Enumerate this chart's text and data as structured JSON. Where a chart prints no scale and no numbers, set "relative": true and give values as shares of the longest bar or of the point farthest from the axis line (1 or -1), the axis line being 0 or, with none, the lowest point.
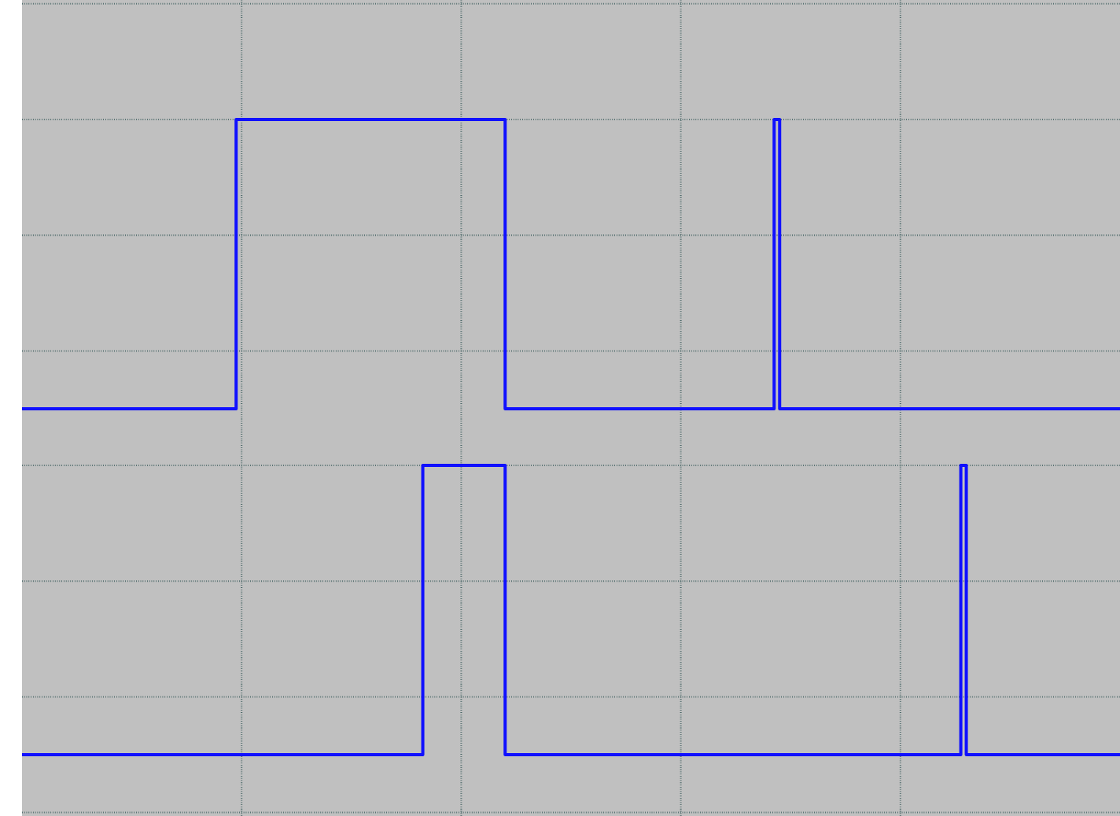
{
  "chart_data": [
    {
      "type": "step",
      "relative": true,
      "color": "#1010ff",
      "grid": true,
      "categories": [
        null,
        null,
        null,
        null,
        null,
        null,
        null,
        null,
        null,
        null,
        null,
        null,
        null,
        null,
        null,
        null,
        null,
        null,
        null,
        null,
        null,
        null,
        null,
        null,
        null,
        null,
        null,
        null,
        null,
        null,
        null,
        null,
        null,
        null,
        null,
        null,
        null,
        null,
        null,
        null,
        null,
        null,
        null,
        null,
        null,
        null,
        null,
        null,
        null,
        null,
        null,
        null,
        null,
        null,
        null,
        null,
        null,
        null,
        null,
        null,
        null,
        null,
        null,
        null,
        null,
        null,
        null,
        null,
        null,
        null,
        null,
        null,
        null,
        null,
        null,
        null,
        null,
        null,
        null,
        null,
        null,
        null,
        null,
        null,
        null,
        null,
        null,
        null,
        null,
        null,
        null,
        null,
        null,
        null,
        null,
        null,
        null,
        null,
        null,
        null,
        null,
        null,
        null,
        null,
        null,
        null,
        null,
        null,
        null,
        null,
        null,
        null,
        null,
        null,
        null,
        null,
        null,
        null,
        null,
        null,
        null,
        null,
        null,
        null,
        null,
        null,
        null,
        null,
        null,
        null,
        null,
        null,
        null,
        null,
        null,
        null,
        null,
        null,
        null,
        null,
        null,
        null,
        null,
        null,
        null,
        null,
        null,
        null,
        null,
        null,
        null,
        null,
        null,
        null,
        null,
        null,
        null,
        null,
        null,
        null,
        null,
        null,
        null,
        null,
        null,
        null,
        null,
        null,
        null,
        null,
        null,
        null,
        null,
        null,
        null,
        null,
        null,
        null,
        null,
        null,
        null,
        null,
        null,
        null,
        null,
        null,
        null,
        null,
        null,
        null,
        null,
        null,
        null,
        null,
        null,
        null,
        null,
        null,
        null,
        null,
        null
      ],
      "values": [
        0,
        0,
        0,
        0,
        0,
        0,
        0,
        0,
        0,
        0,
        0,
        0,
        0,
        0,
        0,
        0,
        0,
        0,
        0,
        0,
        0,
        0,
        0,
        0,
        0,
        0,
        0,
        0,
        0,
        0,
        0,
        0,
        0,
        0,
        0,
        0,
        0,
        0,
        0,
        1,
        1,
        1,
        1,
        1,
        1,
        1,
        1,
        1,
        1,
        1,
        1,
        1,
        1,
        1,
        1,
        1,
        1,
        1,
        1,
        1,
        1,
        1,
        1,
        1,
        1,
        1,
        1,
        1,
        1,
        1,
        1,
        1,
        1,
        1,
        1,
        1,
        1,
        1,
        1,
        1,
        1,
        1,
        1,
        1,
        1,
        1,
        1,
        1,
        0,
        0,
        0,
        0,
        0,
        0,
        0,
        0,
        0,
        0,
        0,
        0,
        0,
        0,
        0,
        0,
        0,
        0,
        0,
        0,
        0,
        0,
        0,
        0,
        0,
        0,
        0,
        0,
        0,
        0,
        0,
        0,
        0,
        0,
        0,
        0,
        0,
        0,
        0,
        0,
        0,
        0,
        0,
        0,
        0,
        0,
        0,
        0,
        0,
        1,
        0,
        0,
        0,
        0,
        0,
        0,
        0,
        0,
        0,
        0,
        0,
        0,
        0,
        0,
        0,
        0,
        0,
        0,
        0,
        0,
        0,
        0,
        0,
        0,
        0,
        0,
        0,
        0,
        0,
        0,
        0,
        0,
        0,
        0,
        0,
        0,
        0,
        0,
        0,
        0,
        0,
        0,
        0,
        0,
        0,
        0,
        0,
        0,
        0,
        0,
        0,
        0,
        0,
        0,
        0,
        0,
        0,
        0,
        0,
        0,
        0,
        0,
        0
      ]
    },
    {
      "type": "step",
      "relative": true,
      "color": "#1010ff",
      "grid": true,
      "categories": [
        null,
        null,
        null,
        null,
        null,
        null,
        null,
        null,
        null,
        null,
        null,
        null,
        null,
        null,
        null,
        null,
        null,
        null,
        null,
        null,
        null,
        null,
        null,
        null,
        null,
        null,
        null,
        null,
        null,
        null,
        null,
        null,
        null,
        null,
        null,
        null,
        null,
        null,
        null,
        null,
        null,
        null,
        null,
        null,
        null,
        null,
        null,
        null,
        null,
        null,
        null,
        null,
        null,
        null,
        null,
        null,
        null,
        null,
        null,
        null,
        null,
        null,
        null,
        null,
        null,
        null,
        null,
        null,
        null,
        null,
        null,
        null,
        null,
        null,
        null,
        null,
        null,
        null,
        null,
        null,
        null,
        null,
        null,
        null,
        null,
        null,
        null,
        null,
        null,
        null,
        null,
        null,
        null,
        null,
        null,
        null,
        null,
        null,
        null,
        null,
        null,
        null,
        null,
        null,
        null,
        null,
        null,
        null,
        null,
        null,
        null,
        null,
        null,
        null,
        null,
        null,
        null,
        null,
        null,
        null,
        null,
        null,
        null,
        null,
        null,
        null,
        null,
        null,
        null,
        null,
        null,
        null,
        null,
        null,
        null,
        null,
        null,
        null,
        null,
        null,
        null,
        null,
        null,
        null,
        null,
        null,
        null,
        null,
        null,
        null,
        null,
        null,
        null,
        null,
        null,
        null,
        null,
        null,
        null,
        null,
        null,
        null,
        null,
        null,
        null,
        null,
        null,
        null,
        null,
        null,
        null,
        null,
        null,
        null,
        null,
        null,
        null,
        null,
        null,
        null,
        null,
        null,
        null,
        null,
        null,
        null,
        null,
        null,
        null,
        null,
        null,
        null,
        null,
        null,
        null,
        null,
        null,
        null,
        null,
        null,
        null
      ],
      "values": [
        0,
        0,
        0,
        0,
        0,
        0,
        0,
        0,
        0,
        0,
        0,
        0,
        0,
        0,
        0,
        0,
        0,
        0,
        0,
        0,
        0,
        0,
        0,
        0,
        0,
        0,
        0,
        0,
        0,
        0,
        0,
        0,
        0,
        0,
        0,
        0,
        0,
        0,
        0,
        0,
        0,
        0,
        0,
        0,
        0,
        0,
        0,
        0,
        0,
        0,
        0,
        0,
        0,
        0,
        0,
        0,
        0,
        0,
        0,
        0,
        0,
        0,
        0,
        0,
        0,
        0,
        0,
        0,
        0,
        0,
        0,
        0,
        0,
        1,
        1,
        1,
        1,
        1,
        1,
        1,
        1,
        1,
        1,
        1,
        1,
        1,
        1,
        1,
        0,
        0,
        0,
        0,
        0,
        0,
        0,
        0,
        0,
        0,
        0,
        0,
        0,
        0,
        0,
        0,
        0,
        0,
        0,
        0,
        0,
        0,
        0,
        0,
        0,
        0,
        0,
        0,
        0,
        0,
        0,
        0,
        0,
        0,
        0,
        0,
        0,
        0,
        0,
        0,
        0,
        0,
        0,
        0,
        0,
        0,
        0,
        0,
        0,
        0,
        0,
        0,
        0,
        0,
        0,
        0,
        0,
        0,
        0,
        0,
        0,
        0,
        0,
        0,
        0,
        0,
        0,
        0,
        0,
        0,
        0,
        0,
        0,
        0,
        0,
        0,
        0,
        0,
        0,
        0,
        0,
        0,
        0,
        1,
        0,
        0,
        0,
        0,
        0,
        0,
        0,
        0,
        0,
        0,
        0,
        0,
        0,
        0,
        0,
        0,
        0,
        0,
        0,
        0,
        0,
        0,
        0,
        0,
        0,
        0,
        0,
        0,
        0
      ]
    }
  ]
}
